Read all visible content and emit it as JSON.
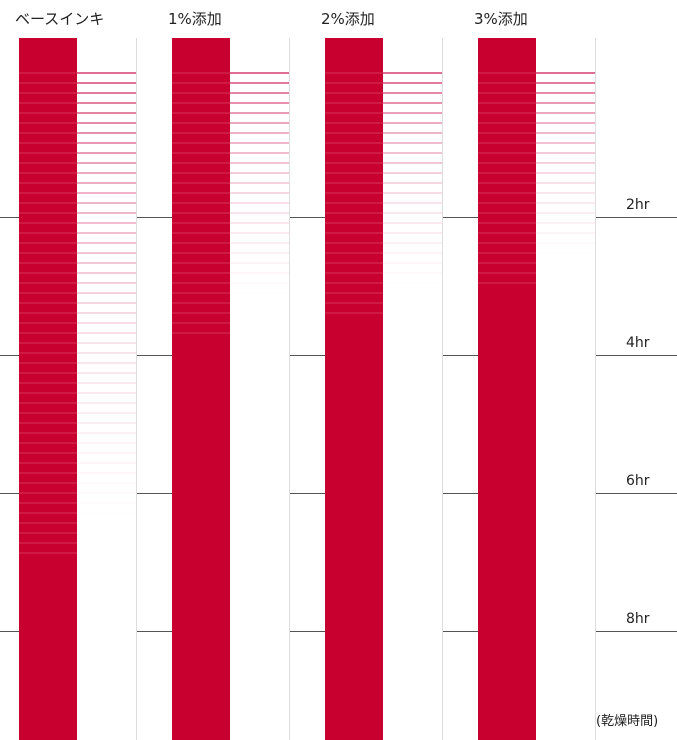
{
  "columns": [
    {
      "label": "ベースインキ",
      "transfer_visible_hr": 6.4
    },
    {
      "label": "1%添加",
      "transfer_visible_hr": 3.2
    },
    {
      "label": "2%添加",
      "transfer_visible_hr": 3.0
    },
    {
      "label": "3%添加",
      "transfer_visible_hr": 2.6
    }
  ],
  "time_marks": [
    "2hr",
    "4hr",
    "6hr",
    "8hr"
  ],
  "time_mark_values_hr": [
    2,
    4,
    6,
    8
  ],
  "axis_unit": "(乾燥時間)",
  "colors": {
    "ink": "#c8002f",
    "transfer": "#d63c6e",
    "tick": "#555555"
  }
}
